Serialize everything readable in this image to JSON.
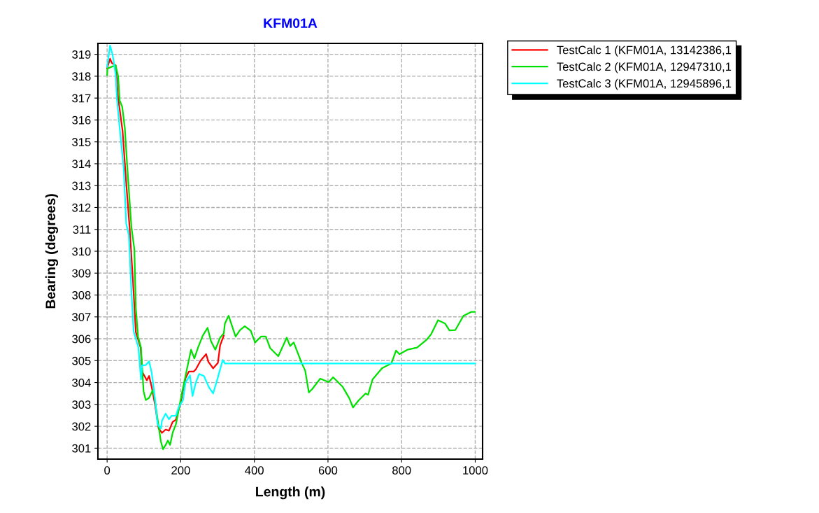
{
  "chart_data": {
    "type": "line",
    "title": "KFM01A",
    "xlabel": "Length (m)",
    "ylabel": "Bearing (degrees)",
    "xlim": [
      -25,
      1020
    ],
    "ylim": [
      300.5,
      319.5
    ],
    "xticks": [
      0,
      200,
      400,
      600,
      800,
      1000
    ],
    "yticks": [
      301,
      302,
      303,
      304,
      305,
      306,
      307,
      308,
      309,
      310,
      311,
      312,
      313,
      314,
      315,
      316,
      317,
      318,
      319
    ],
    "grid": true,
    "legend": "top right",
    "line_style": "solid",
    "marker": "none",
    "series": [
      {
        "name": "TestCalc 1 (KFM01A, 13142386,1",
        "color": "#ff0000",
        "x": [
          0,
          8,
          13,
          23,
          30,
          42,
          52,
          61,
          70,
          78,
          91,
          95,
          108,
          114,
          121,
          130,
          140,
          149,
          159,
          168,
          178,
          187,
          200,
          213,
          222,
          235,
          241,
          254,
          269,
          275,
          288,
          301,
          307,
          317
        ],
        "values": [
          318.36,
          318.8,
          318.6,
          318.5,
          317.0,
          315.5,
          313.1,
          311.1,
          308.7,
          306.3,
          305.6,
          304.5,
          304.1,
          304.3,
          303.8,
          303.0,
          301.9,
          301.7,
          301.85,
          301.8,
          302.2,
          302.3,
          303.1,
          304.2,
          304.5,
          304.5,
          304.6,
          305.0,
          305.3,
          304.95,
          304.65,
          304.9,
          305.7,
          306.15
        ]
      },
      {
        "name": "TestCalc 2 (KFM01A, 12947310,1",
        "color": "#00e000",
        "x": [
          0,
          1,
          8,
          23,
          30,
          34,
          41,
          48,
          55,
          66,
          74,
          78,
          84,
          92,
          99,
          105,
          114,
          124,
          127,
          140,
          146,
          152,
          159,
          165,
          171,
          178,
          187,
          203,
          216,
          228,
          237,
          247,
          260,
          273,
          282,
          294,
          307,
          317,
          320,
          330,
          349,
          361,
          374,
          390,
          402,
          418,
          431,
          443,
          465,
          488,
          497,
          507,
          529,
          538,
          548,
          557,
          579,
          602,
          614,
          640,
          658,
          668,
          683,
          702,
          709,
          721,
          747,
          772,
          785,
          794,
          816,
          842,
          867,
          880,
          899,
          918,
          930,
          946,
          968,
          990,
          999
        ],
        "values": [
          318.05,
          318.35,
          318.4,
          318.5,
          318.0,
          316.9,
          316.6,
          315.65,
          313.8,
          311.1,
          310.1,
          307.4,
          306.1,
          305.6,
          303.6,
          303.2,
          303.3,
          303.65,
          303.5,
          302.0,
          301.3,
          300.95,
          301.15,
          301.35,
          301.15,
          301.7,
          302.1,
          303.5,
          304.55,
          305.5,
          305.1,
          305.6,
          306.15,
          306.5,
          305.9,
          305.5,
          306.05,
          306.25,
          306.7,
          307.05,
          306.1,
          306.4,
          306.57,
          306.37,
          305.83,
          306.1,
          306.1,
          305.57,
          305.2,
          306.05,
          305.67,
          305.83,
          304.87,
          304.55,
          303.55,
          303.7,
          304.18,
          304.02,
          304.24,
          303.8,
          303.28,
          302.86,
          303.18,
          303.5,
          303.44,
          304.14,
          304.66,
          304.87,
          305.46,
          305.3,
          305.5,
          305.6,
          305.94,
          306.2,
          306.85,
          306.7,
          306.38,
          306.4,
          307.05,
          307.23,
          307.23
        ]
      },
      {
        "name": "TestCalc 3 (KFM01A, 12945896,1",
        "color": "#00ffff",
        "x": [
          0,
          8,
          15,
          23,
          27,
          34,
          45,
          52,
          59,
          66,
          72,
          85,
          92,
          95,
          105,
          114,
          121,
          130,
          137,
          146,
          149,
          159,
          168,
          175,
          187,
          194,
          206,
          213,
          225,
          232,
          241,
          250,
          263,
          276,
          288,
          301,
          314,
          320,
          1000
        ],
        "values": [
          318.43,
          319.4,
          318.97,
          318.1,
          316.9,
          315.65,
          313.8,
          311.25,
          310.74,
          308.17,
          306.34,
          305.6,
          304.14,
          304.78,
          304.8,
          304.97,
          304.46,
          303.28,
          302.1,
          301.9,
          302.26,
          302.58,
          302.32,
          302.48,
          302.48,
          302.86,
          303.18,
          304.0,
          304.33,
          303.38,
          304.0,
          304.39,
          304.3,
          303.8,
          303.5,
          304.24,
          305.03,
          304.87,
          304.87
        ]
      }
    ]
  }
}
